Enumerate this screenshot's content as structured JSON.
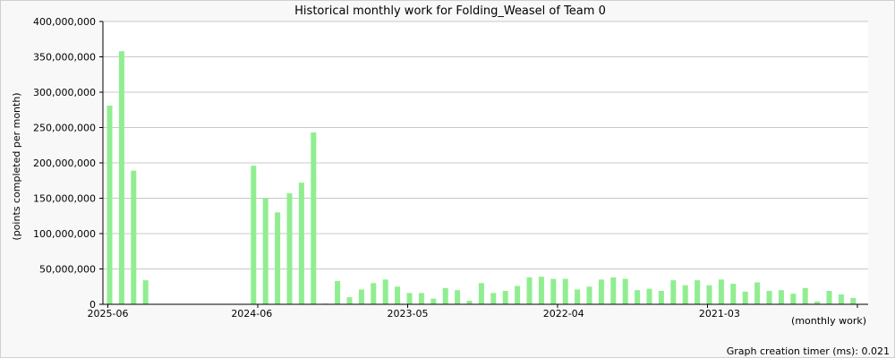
{
  "chart_data": {
    "type": "bar",
    "title": "Historical monthly work for Folding_Weasel of Team 0",
    "ylabel": "(points completed per month)",
    "xlabel": "(monthly work)",
    "footer": "Graph creation timer (ms): 0.021",
    "ylim": [
      0,
      400000000
    ],
    "yticks": [
      "0",
      "50,000,000",
      "100,000,000",
      "150,000,000",
      "200,000,000",
      "250,000,000",
      "300,000,000",
      "350,000,000",
      "400,000,000"
    ],
    "ytick_values": [
      0,
      50000000,
      100000000,
      150000000,
      200000000,
      250000000,
      300000000,
      350000000,
      400000000
    ],
    "xtick_labels": [
      "2025-06",
      "2024-06",
      "2023-05",
      "2022-04",
      "2021-03"
    ],
    "xtick_positions": [
      0,
      12,
      25,
      38,
      51
    ],
    "grid": true,
    "bar_color": "#90ee90",
    "categories_note": "months descending from 2025-06, one bar per month",
    "values": [
      281000000,
      358000000,
      189000000,
      34000000,
      0,
      0,
      0,
      0,
      0,
      0,
      0,
      0,
      196000000,
      150000000,
      130000000,
      157000000,
      172000000,
      243000000,
      1000000,
      33000000,
      10000000,
      21000000,
      30000000,
      35000000,
      25000000,
      16000000,
      16000000,
      8000000,
      23000000,
      20000000,
      5000000,
      30000000,
      16000000,
      19000000,
      26000000,
      38000000,
      39000000,
      36000000,
      36000000,
      21000000,
      25000000,
      35000000,
      38000000,
      36000000,
      20000000,
      22000000,
      19000000,
      34000000,
      27000000,
      34000000,
      27000000,
      35000000,
      29000000,
      18000000,
      31000000,
      19000000,
      20000000,
      15000000,
      23000000,
      4000000,
      19000000,
      14000000,
      9000000
    ]
  }
}
